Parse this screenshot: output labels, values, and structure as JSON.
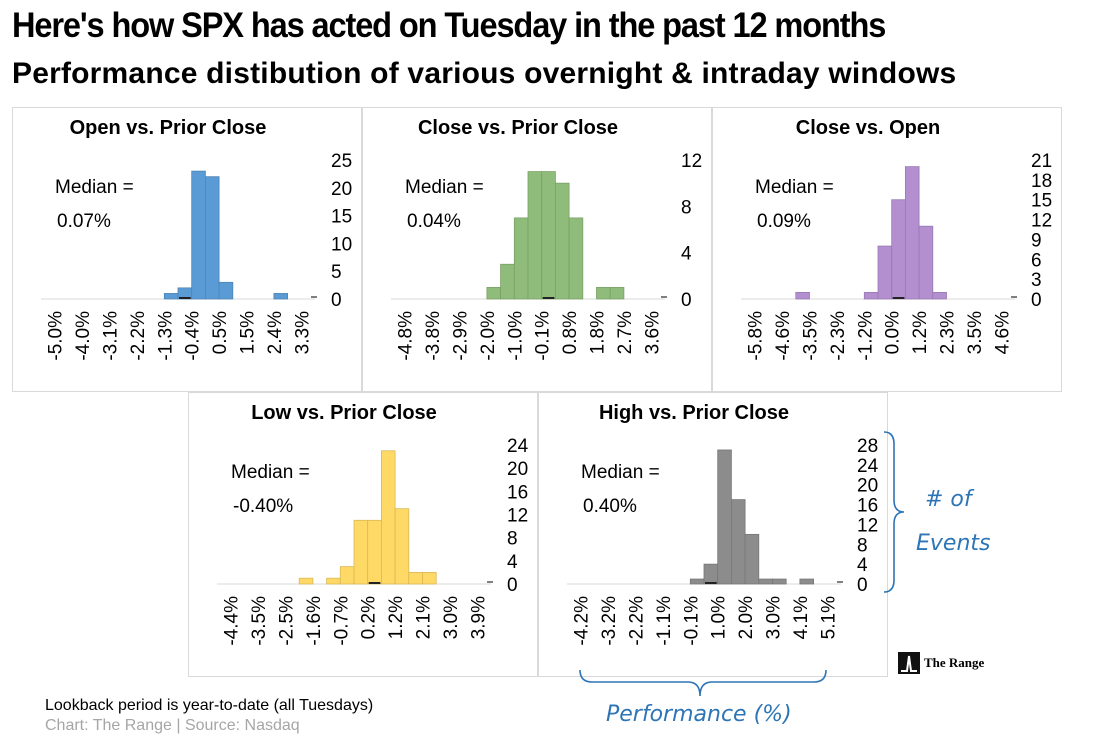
{
  "title": "Here's how SPX has acted on Tuesday in the past 12 months",
  "subtitle": "Performance distibution of various overnight & intraday windows",
  "footer": {
    "note": "Lookback period is year-to-date (all Tuesdays)",
    "source": "Chart: The Range | Source: Nasdaq"
  },
  "logo": {
    "text": "The Range"
  },
  "annotations": {
    "events_line1": "# of",
    "events_line2": "Events",
    "performance": "Performance (%)"
  },
  "colors": {
    "blue": "#5b9bd5",
    "green": "#8fbc7a",
    "purple": "#b38fd0",
    "yellow": "#ffd966",
    "gray": "#8c8c8c",
    "annotation": "#2e75b6"
  },
  "chart_data": [
    {
      "type": "bar",
      "title": "Open vs. Prior Close",
      "median_label": "Median =",
      "median_value": "0.07%",
      "color": "#5b9bd5",
      "xticks": [
        "-5.0%",
        "-4.0%",
        "-3.1%",
        "-2.2%",
        "-1.3%",
        "-0.4%",
        "0.5%",
        "1.5%",
        "2.4%",
        "3.3%"
      ],
      "yticks": [
        "25",
        "20",
        "15",
        "10",
        "5",
        "0"
      ],
      "ylim": [
        0,
        25
      ],
      "nbins": 20,
      "values": [
        0,
        0,
        0,
        0,
        0,
        0,
        0,
        0,
        0,
        1,
        2,
        23,
        22,
        3,
        0,
        0,
        0,
        1,
        0,
        0
      ],
      "median_bin": 10
    },
    {
      "type": "bar",
      "title": "Close vs. Prior Close",
      "median_label": "Median =",
      "median_value": "0.04%",
      "color": "#8fbc7a",
      "xticks": [
        "-4.8%",
        "-3.8%",
        "-2.9%",
        "-2.0%",
        "-1.0%",
        "-0.1%",
        "0.8%",
        "1.8%",
        "2.7%",
        "3.6%"
      ],
      "yticks": [
        "12",
        "8",
        "4",
        "0"
      ],
      "ylim": [
        0,
        12
      ],
      "nbins": 20,
      "values": [
        0,
        0,
        0,
        0,
        0,
        0,
        0,
        1,
        3,
        7,
        11,
        11,
        10,
        7,
        0,
        1,
        1,
        0,
        0,
        0
      ],
      "median_bin": 11
    },
    {
      "type": "bar",
      "title": "Close vs. Open",
      "median_label": "Median =",
      "median_value": "0.09%",
      "color": "#b38fd0",
      "xticks": [
        "-5.8%",
        "-4.6%",
        "-3.5%",
        "-2.3%",
        "-1.2%",
        "0.0%",
        "1.2%",
        "2.3%",
        "3.5%",
        "4.6%"
      ],
      "yticks": [
        "21",
        "18",
        "15",
        "12",
        "9",
        "6",
        "3",
        "0"
      ],
      "ylim": [
        0,
        21
      ],
      "nbins": 20,
      "values": [
        0,
        0,
        0,
        0,
        1,
        0,
        0,
        0,
        0,
        1,
        8,
        15,
        20,
        11,
        1,
        0,
        0,
        0,
        0,
        0
      ],
      "median_bin": 11
    },
    {
      "type": "bar",
      "title": "Low vs. Prior Close",
      "median_label": "Median =",
      "median_value": "-0.40%",
      "color": "#ffd966",
      "xticks": [
        "-4.4%",
        "-3.5%",
        "-2.5%",
        "-1.6%",
        "-0.7%",
        "0.2%",
        "1.2%",
        "2.1%",
        "3.0%",
        "3.9%"
      ],
      "yticks": [
        "24",
        "20",
        "16",
        "12",
        "8",
        "4",
        "0"
      ],
      "ylim": [
        0,
        24
      ],
      "nbins": 20,
      "values": [
        0,
        0,
        0,
        0,
        0,
        0,
        1,
        0,
        1,
        3,
        11,
        11,
        23,
        13,
        2,
        2,
        0,
        0,
        0,
        0
      ],
      "median_bin": 11
    },
    {
      "type": "bar",
      "title": "High vs. Prior Close",
      "median_label": "Median =",
      "median_value": "0.40%",
      "color": "#8c8c8c",
      "xticks": [
        "-4.2%",
        "-3.2%",
        "-2.2%",
        "-1.1%",
        "-0.1%",
        "1.0%",
        "2.0%",
        "3.0%",
        "4.1%",
        "5.1%"
      ],
      "yticks": [
        "28",
        "24",
        "20",
        "16",
        "12",
        "8",
        "4",
        "0"
      ],
      "ylim": [
        0,
        28
      ],
      "nbins": 20,
      "values": [
        0,
        0,
        0,
        0,
        0,
        0,
        0,
        0,
        0,
        1,
        4,
        27,
        17,
        10,
        1,
        1,
        0,
        1,
        0,
        0
      ],
      "median_bin": 10
    }
  ]
}
